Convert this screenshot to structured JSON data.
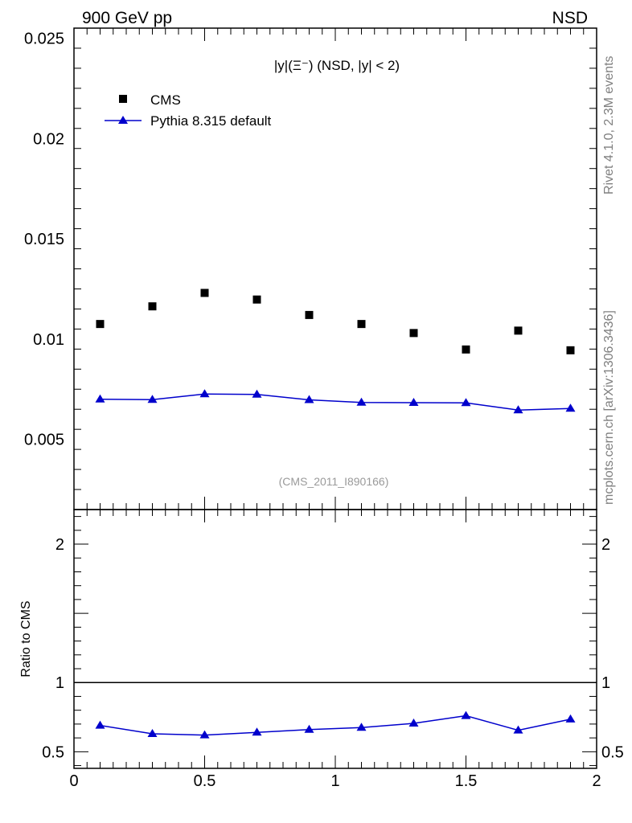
{
  "header": {
    "left_label": "900 GeV pp",
    "right_label": "NSD",
    "side_label_top": "Rivet 4.1.0,  2.3M events",
    "side_label_bottom": "mcplots.cern.ch [arXiv:1306.3436]"
  },
  "chart_data": [
    {
      "type": "scatter",
      "panel": "main",
      "title": "|y|(Ξ⁻) (NSD, |y| < 2)",
      "reference": "(CMS_2011_I890166)",
      "xlabel": "",
      "ylabel": "",
      "xlim": [
        0,
        2
      ],
      "ylim": [
        0.0015,
        0.0255
      ],
      "y_tick_values": [
        0.005,
        0.01,
        0.015,
        0.02,
        0.025
      ],
      "y_tick_labels": [
        "0.005",
        "0.01",
        "0.015",
        "0.02",
        "0.025"
      ],
      "legend_position": "top-left",
      "x": [
        0.1,
        0.3,
        0.5,
        0.7,
        0.9,
        1.1,
        1.3,
        1.5,
        1.7,
        1.9
      ],
      "series": [
        {
          "name": "CMS",
          "marker": "square",
          "color": "#000000",
          "values": [
            0.01075,
            0.01163,
            0.0123,
            0.01197,
            0.0112,
            0.01075,
            0.0103,
            0.00948,
            0.01042,
            0.00944
          ]
        },
        {
          "name": "Pythia 8.315 default",
          "marker": "triangle",
          "color": "#0000cc",
          "values": [
            0.007,
            0.00698,
            0.00726,
            0.00724,
            0.00697,
            0.00684,
            0.00683,
            0.00682,
            0.00646,
            0.00654
          ]
        }
      ]
    },
    {
      "type": "line",
      "panel": "ratio",
      "ylabel": "Ratio to CMS",
      "xlim": [
        0,
        2
      ],
      "ylim": [
        0.38,
        2.25
      ],
      "reference_line": 1,
      "x_tick_values": [
        0,
        0.5,
        1,
        1.5,
        2
      ],
      "x_tick_labels": [
        "0",
        "0.5",
        "1",
        "1.5",
        "2"
      ],
      "y_tick_values": [
        0.5,
        1,
        2
      ],
      "y_tick_labels": [
        "0.5",
        "1",
        "2"
      ],
      "x": [
        0.1,
        0.3,
        0.5,
        0.7,
        0.9,
        1.1,
        1.3,
        1.5,
        1.7,
        1.9
      ],
      "series": [
        {
          "name": "Pythia 8.315 default",
          "marker": "triangle",
          "color": "#0000cc",
          "values": [
            0.69,
            0.63,
            0.62,
            0.64,
            0.66,
            0.675,
            0.705,
            0.76,
            0.655,
            0.735
          ]
        }
      ]
    }
  ]
}
